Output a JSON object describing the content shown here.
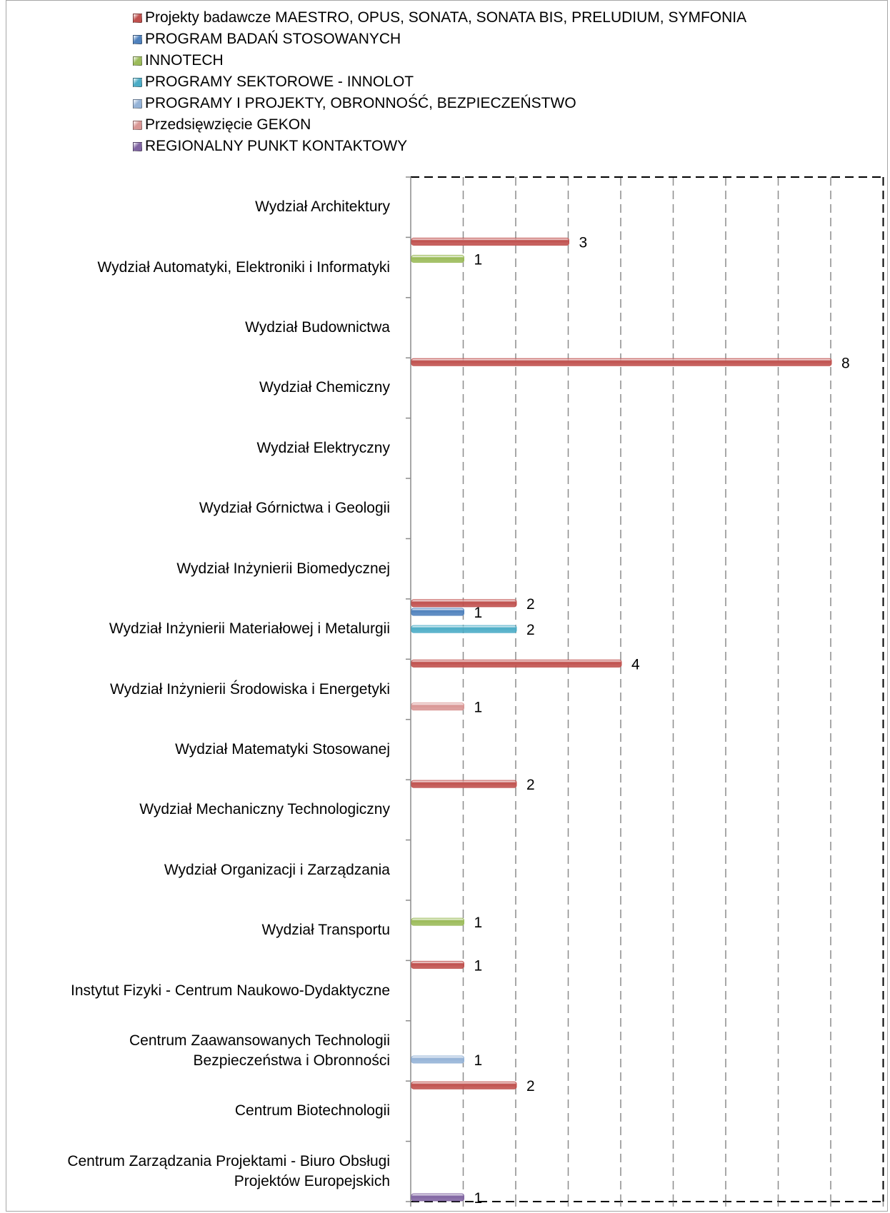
{
  "chart_data": {
    "type": "bar",
    "orientation": "horizontal",
    "grid": true,
    "legend_position": "top",
    "xlim": [
      0,
      9
    ],
    "x_ticks": [
      "0",
      "1",
      "2",
      "3",
      "4",
      "5",
      "6",
      "7",
      "8",
      "9"
    ],
    "categories": [
      "Wydział Architektury",
      "Wydział Automatyki, Elektroniki i Informatyki",
      "Wydział Budownictwa",
      "Wydział Chemiczny",
      "Wydział Elektryczny",
      "Wydział Górnictwa i Geologii",
      "Wydział Inżynierii Biomedycznej",
      "Wydział Inżynierii Materiałowej i Metalurgii",
      "Wydział Inżynierii Środowiska i Energetyki",
      "Wydział Matematyki Stosowanej",
      "Wydział Mechaniczny Technologiczny",
      "Wydział Organizacji i Zarządzania",
      "Wydział Transportu",
      "Instytut Fizyki - Centrum Naukowo-Dydaktyczne",
      "Centrum Zaawansowanych Technologii Bezpieczeństwa i Obronności",
      "Centrum Biotechnologii",
      "Centrum Zarządzania Projektami - Biuro Obsługi Projektów Europejskich"
    ],
    "category_lines": [
      [
        "Wydział Architektury"
      ],
      [
        "Wydział Automatyki, Elektroniki i Informatyki"
      ],
      [
        "Wydział Budownictwa"
      ],
      [
        "Wydział Chemiczny"
      ],
      [
        "Wydział Elektryczny"
      ],
      [
        "Wydział Górnictwa i Geologii"
      ],
      [
        "Wydział Inżynierii Biomedycznej"
      ],
      [
        "Wydział Inżynierii Materiałowej i Metalurgii"
      ],
      [
        "Wydział Inżynierii Środowiska i Energetyki"
      ],
      [
        "Wydział Matematyki Stosowanej"
      ],
      [
        "Wydział Mechaniczny Technologiczny"
      ],
      [
        "Wydział Organizacji i Zarządzania"
      ],
      [
        "Wydział Transportu"
      ],
      [
        "Instytut Fizyki - Centrum Naukowo-Dydaktyczne"
      ],
      [
        "Centrum Zaawansowanych Technologii",
        "Bezpieczeństwa i Obronności"
      ],
      [
        "Centrum Biotechnologii"
      ],
      [
        "Centrum Zarządzania Projektami - Biuro Obsługi",
        "Projektów Europejskich"
      ]
    ],
    "series": [
      {
        "name": "Projekty badawcze MAESTRO, OPUS, SONATA, SONATA BIS, PRELUDIUM, SYMFONIA",
        "color": "#c0504d",
        "values": [
          null,
          3,
          null,
          8,
          null,
          null,
          null,
          2,
          4,
          null,
          2,
          null,
          null,
          1,
          null,
          2,
          null
        ]
      },
      {
        "name": "PROGRAM BADAŃ STOSOWANYCH",
        "color": "#4f81bd",
        "values": [
          null,
          null,
          null,
          null,
          null,
          null,
          null,
          1,
          null,
          null,
          null,
          null,
          null,
          null,
          null,
          null,
          null
        ]
      },
      {
        "name": "INNOTECH",
        "color": "#9bbb59",
        "values": [
          null,
          1,
          null,
          null,
          null,
          null,
          null,
          null,
          null,
          null,
          null,
          null,
          1,
          null,
          null,
          null,
          null
        ]
      },
      {
        "name": "PROGRAMY SEKTOROWE - INNOLOT",
        "color": "#4bacc6",
        "values": [
          null,
          null,
          null,
          null,
          null,
          null,
          null,
          2,
          null,
          null,
          null,
          null,
          null,
          null,
          null,
          null,
          null
        ]
      },
      {
        "name": "PROGRAMY I PROJEKTY, OBRONNOŚĆ, BEZPIECZEŃSTWO",
        "color": "#95b3d7",
        "values": [
          null,
          null,
          null,
          null,
          null,
          null,
          null,
          null,
          null,
          null,
          null,
          null,
          null,
          null,
          1,
          null,
          null
        ]
      },
      {
        "name": "Przedsięwzięcie GEKON",
        "color": "#d99694",
        "values": [
          null,
          null,
          null,
          null,
          null,
          null,
          null,
          null,
          1,
          null,
          null,
          null,
          null,
          null,
          null,
          null,
          null
        ]
      },
      {
        "name": "REGIONALNY PUNKT KONTAKTOWY",
        "color": "#8064a2",
        "values": [
          null,
          null,
          null,
          null,
          null,
          null,
          null,
          null,
          null,
          null,
          null,
          null,
          null,
          null,
          null,
          null,
          1
        ]
      }
    ]
  }
}
